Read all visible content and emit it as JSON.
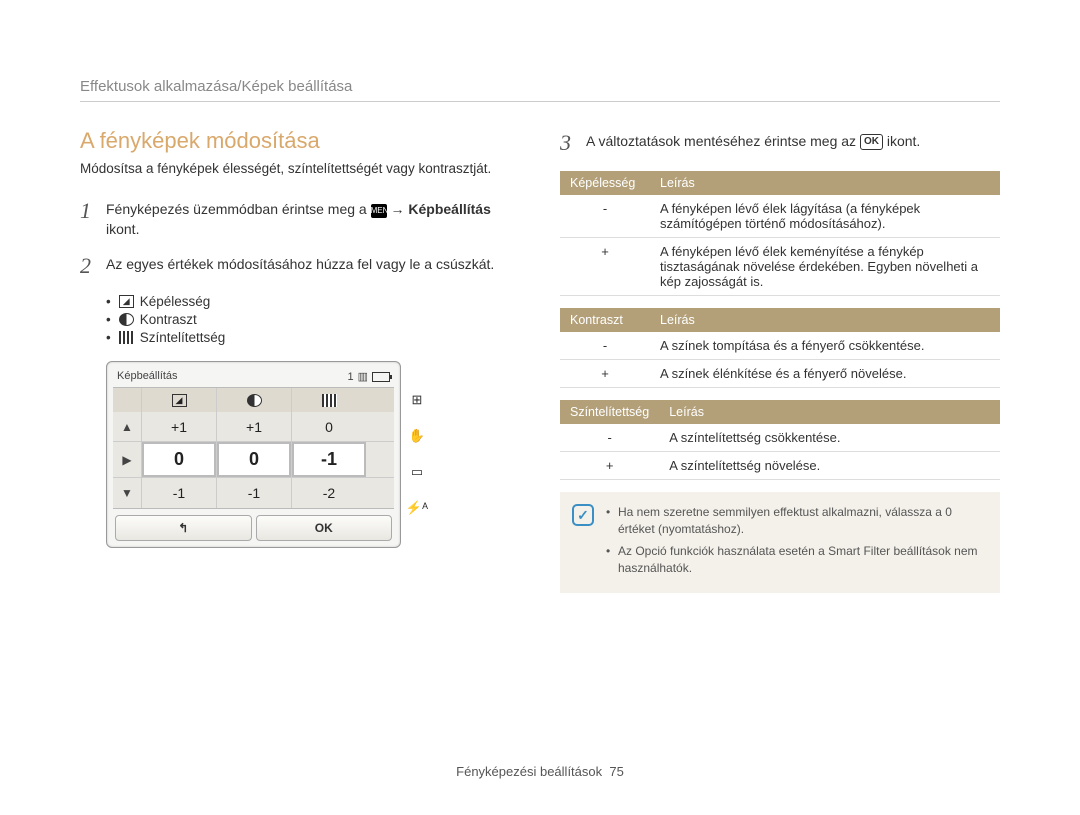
{
  "breadcrumb": "Effektusok alkalmazása/Képek beállítása",
  "section_title": "A fényképek módosítása",
  "intro": "Módosítsa a fényképek élességét, színtelítettségét vagy kontrasztját.",
  "steps": {
    "s1_pre": "Fényképezés üzemmódban érintse meg a ",
    "s1_menu": "MENU",
    "s1_arrow": " → ",
    "s1_bold": "Képbeállítás",
    "s1_post": " ikont.",
    "s2": "Az egyes értékek módosításához húzza fel vagy le a csúszkát.",
    "s3_pre": "A változtatások mentéséhez érintse meg az ",
    "s3_ok": "OK",
    "s3_post": " ikont."
  },
  "sublist": {
    "a": "Képélesség",
    "b": "Kontraszt",
    "c": "Színtelítettség"
  },
  "camera": {
    "title": "Képbeállítás",
    "counter": "1",
    "rows": {
      "r1": {
        "left": "▲",
        "a": "+1",
        "b": "+1",
        "c": "0",
        "right": ""
      },
      "r2": {
        "left": "▶",
        "a": "0",
        "b": "0",
        "c": "-1",
        "right": ""
      },
      "r3": {
        "left": "▼",
        "a": "-1",
        "b": "-1",
        "c": "-2",
        "right": ""
      }
    },
    "back": "↰",
    "ok": "OK",
    "side_icons": {
      "a": "⊞",
      "b": "✋",
      "c": "▭",
      "d": "⚡ᴬ"
    }
  },
  "tables": {
    "t1": {
      "h1": "Képélesség",
      "h2": "Leírás",
      "rows": [
        {
          "k": "-",
          "v": "A fényképen lévő élek lágyítása (a fényképek számítógépen történő módosításához)."
        },
        {
          "k": "+",
          "v": "A fényképen lévő élek keményítése a fénykép tisztaságának növelése érdekében. Egyben növelheti a kép zajosságát is."
        }
      ]
    },
    "t2": {
      "h1": "Kontraszt",
      "h2": "Leírás",
      "rows": [
        {
          "k": "-",
          "v": "A színek tompítása és a fényerő csökkentése."
        },
        {
          "k": "+",
          "v": "A színek élénkítése és a fényerő növelése."
        }
      ]
    },
    "t3": {
      "h1": "Színtelítettség",
      "h2": "Leírás",
      "rows": [
        {
          "k": "-",
          "v": "A színtelítettség csökkentése."
        },
        {
          "k": "+",
          "v": "A színtelítettség növelése."
        }
      ]
    }
  },
  "note": {
    "a": "Ha nem szeretne semmilyen effektust alkalmazni, válassza a 0 értéket (nyomtatáshoz).",
    "b": "Az Opció funkciók használata esetén a Smart Filter beállítások nem használhatók."
  },
  "footer_label": "Fényképezési beállítások",
  "footer_page": "75",
  "colors": {
    "accent": "#d9a86b",
    "table_header": "#b3a079",
    "note_bg": "#f4f1ea",
    "note_icon": "#3a8fc4"
  }
}
